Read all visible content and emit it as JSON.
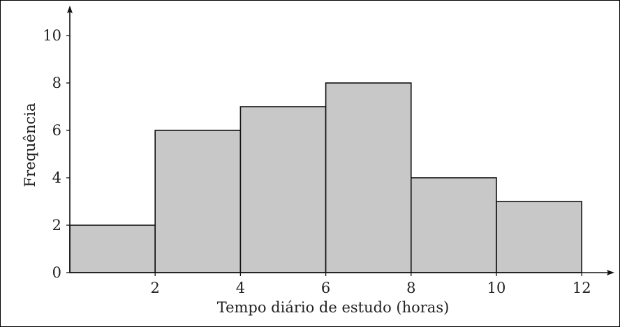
{
  "chart_data": {
    "type": "bar",
    "subtype": "histogram",
    "bins": [
      {
        "start": 0,
        "end": 2,
        "value": 2
      },
      {
        "start": 2,
        "end": 4,
        "value": 6
      },
      {
        "start": 4,
        "end": 6,
        "value": 7
      },
      {
        "start": 6,
        "end": 8,
        "value": 8
      },
      {
        "start": 8,
        "end": 10,
        "value": 4
      },
      {
        "start": 10,
        "end": 12,
        "value": 3
      }
    ],
    "xlabel": "Tempo diário de estudo (horas)",
    "ylabel": "Frequência",
    "xticks": [
      "2",
      "4",
      "6",
      "8",
      "10",
      "12"
    ],
    "yticks": [
      "0",
      "2",
      "4",
      "6",
      "8",
      "10"
    ],
    "ylim": [
      0,
      10
    ],
    "grid": false,
    "colors": {
      "bar_fill": "#c8c8c8",
      "bar_stroke": "#111111"
    }
  }
}
